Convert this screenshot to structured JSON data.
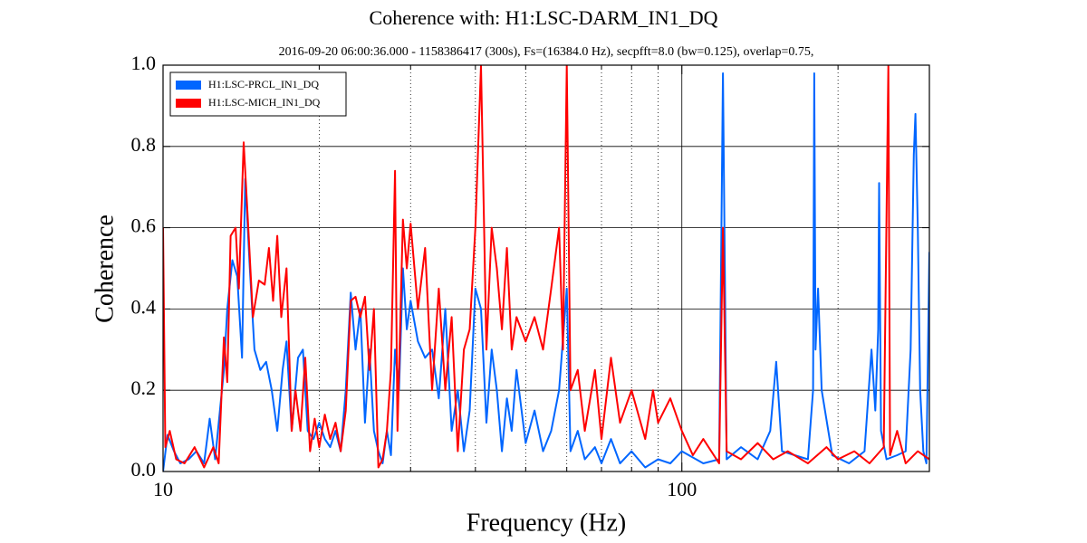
{
  "chart_data": {
    "type": "line",
    "title": "Coherence with: H1:LSC-DARM_IN1_DQ",
    "subtitle": "2016-09-20 06:00:36.000 - 1158386417 (300s), Fs=(16384.0 Hz), secpfft=8.0 (bw=0.125), overlap=0.75,",
    "xlabel": "Frequency (Hz)",
    "ylabel": "Coherence",
    "xscale": "log",
    "xlim": [
      10,
      300
    ],
    "xticks": [
      10,
      100
    ],
    "xminorticks": [
      20,
      30,
      40,
      50,
      60,
      70,
      80,
      90,
      200
    ],
    "ylim": [
      0,
      1
    ],
    "yticks": [
      {
        "value": 0,
        "label": "0.0"
      },
      0.2,
      0.4,
      0.6,
      0.8,
      {
        "value": 1,
        "label": "1.0"
      }
    ],
    "grid": true,
    "legend": "upper left",
    "series": [
      {
        "name": "H1:LSC-PRCL_IN1_DQ",
        "color": "#0066ff",
        "x": [
          10,
          10.2,
          10.5,
          10.8,
          11.2,
          11.6,
          12,
          12.3,
          12.6,
          13.1,
          13.3,
          13.6,
          13.9,
          14.2,
          14.4,
          14.7,
          15,
          15.4,
          15.8,
          16.2,
          16.6,
          17,
          17.3,
          17.7,
          18.2,
          18.6,
          19,
          19.5,
          20,
          20.5,
          21,
          21.5,
          22,
          22.5,
          23,
          23.5,
          24,
          24.5,
          25,
          25.5,
          26,
          26.5,
          27,
          27.5,
          28,
          28.5,
          29,
          29.5,
          30,
          31,
          32,
          33,
          34,
          35,
          36,
          37,
          38,
          39,
          40,
          41,
          42,
          43,
          44,
          45,
          46,
          47,
          48,
          50,
          52,
          54,
          56,
          58,
          60,
          61,
          63,
          65,
          68,
          70,
          73,
          76,
          80,
          85,
          90,
          95,
          100,
          110,
          118,
          120,
          122,
          130,
          140,
          148,
          152,
          156,
          165,
          175,
          179,
          180,
          181,
          183,
          186,
          195,
          210,
          225,
          232,
          236,
          239,
          240,
          242,
          248,
          260,
          270,
          276,
          280,
          282,
          285,
          288,
          292,
          296,
          300
        ],
        "values": [
          0.0,
          0.09,
          0.05,
          0.02,
          0.03,
          0.05,
          0.02,
          0.13,
          0.03,
          0.25,
          0.4,
          0.52,
          0.48,
          0.28,
          0.72,
          0.5,
          0.3,
          0.25,
          0.27,
          0.2,
          0.1,
          0.25,
          0.32,
          0.1,
          0.28,
          0.3,
          0.1,
          0.08,
          0.12,
          0.08,
          0.06,
          0.1,
          0.05,
          0.2,
          0.44,
          0.3,
          0.4,
          0.12,
          0.3,
          0.1,
          0.05,
          0.02,
          0.1,
          0.04,
          0.3,
          0.2,
          0.5,
          0.35,
          0.42,
          0.32,
          0.28,
          0.3,
          0.18,
          0.4,
          0.1,
          0.2,
          0.05,
          0.15,
          0.45,
          0.4,
          0.12,
          0.3,
          0.2,
          0.05,
          0.18,
          0.1,
          0.25,
          0.07,
          0.15,
          0.05,
          0.1,
          0.2,
          0.45,
          0.05,
          0.1,
          0.03,
          0.06,
          0.02,
          0.08,
          0.02,
          0.05,
          0.01,
          0.03,
          0.02,
          0.05,
          0.02,
          0.03,
          0.98,
          0.03,
          0.06,
          0.03,
          0.1,
          0.27,
          0.05,
          0.04,
          0.03,
          0.2,
          0.98,
          0.3,
          0.45,
          0.2,
          0.04,
          0.02,
          0.05,
          0.3,
          0.15,
          0.35,
          0.71,
          0.1,
          0.03,
          0.04,
          0.05,
          0.3,
          0.78,
          0.88,
          0.6,
          0.2,
          0.05,
          0.02,
          0.54
        ]
      },
      {
        "name": "H1:LSC-MICH_IN1_DQ",
        "color": "#ff0000",
        "x": [
          10,
          10.1,
          10.3,
          10.6,
          11,
          11.5,
          12,
          12.5,
          12.8,
          13.1,
          13.3,
          13.5,
          13.8,
          14,
          14.3,
          14.6,
          14.9,
          15.3,
          15.7,
          16,
          16.3,
          16.6,
          16.9,
          17.3,
          17.7,
          18,
          18.4,
          18.8,
          19.2,
          19.6,
          20,
          20.5,
          21,
          21.5,
          22,
          22.5,
          23,
          23.5,
          24,
          24.5,
          25,
          25.5,
          26,
          26.5,
          27,
          27.5,
          28,
          28.3,
          29,
          29.5,
          30,
          31,
          32,
          33,
          34,
          35,
          36,
          37,
          38,
          39,
          40,
          41,
          42,
          43,
          44,
          45,
          46,
          47,
          48,
          50,
          52,
          54,
          56,
          58,
          59,
          60,
          61,
          63,
          65,
          68,
          70,
          73,
          76,
          80,
          85,
          88,
          90,
          95,
          100,
          105,
          110,
          118,
          120,
          122,
          130,
          140,
          150,
          160,
          175,
          190,
          200,
          215,
          230,
          245,
          250,
          252,
          260,
          270,
          285,
          300
        ],
        "values": [
          0.6,
          0.06,
          0.1,
          0.03,
          0.02,
          0.06,
          0.01,
          0.06,
          0.02,
          0.33,
          0.22,
          0.58,
          0.6,
          0.45,
          0.81,
          0.6,
          0.38,
          0.47,
          0.46,
          0.55,
          0.42,
          0.58,
          0.38,
          0.5,
          0.1,
          0.2,
          0.1,
          0.28,
          0.05,
          0.13,
          0.06,
          0.14,
          0.08,
          0.12,
          0.05,
          0.15,
          0.42,
          0.43,
          0.38,
          0.43,
          0.25,
          0.4,
          0.01,
          0.03,
          0.1,
          0.25,
          0.74,
          0.1,
          0.62,
          0.5,
          0.61,
          0.4,
          0.55,
          0.2,
          0.45,
          0.2,
          0.38,
          0.05,
          0.3,
          0.35,
          0.6,
          1.0,
          0.3,
          0.6,
          0.5,
          0.35,
          0.55,
          0.3,
          0.38,
          0.32,
          0.38,
          0.3,
          0.45,
          0.6,
          0.3,
          1.0,
          0.2,
          0.25,
          0.1,
          0.25,
          0.08,
          0.28,
          0.12,
          0.2,
          0.08,
          0.2,
          0.12,
          0.18,
          0.1,
          0.04,
          0.08,
          0.02,
          0.6,
          0.05,
          0.03,
          0.07,
          0.03,
          0.05,
          0.02,
          0.06,
          0.03,
          0.05,
          0.02,
          0.06,
          1.0,
          0.04,
          0.1,
          0.02,
          0.05,
          0.03
        ]
      }
    ]
  }
}
